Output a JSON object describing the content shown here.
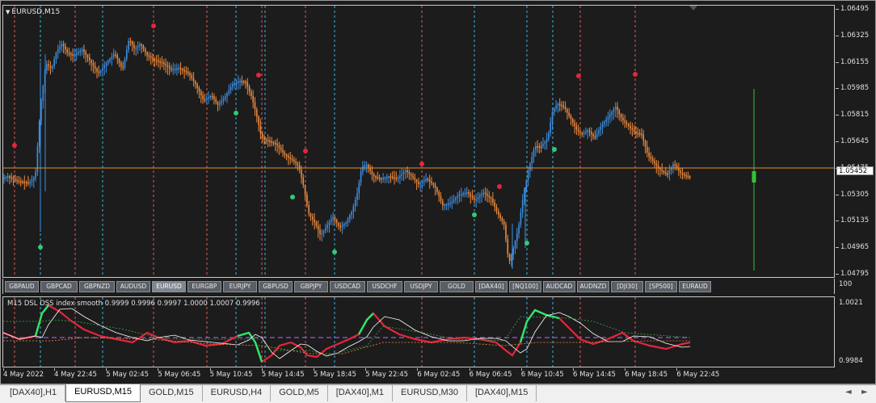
{
  "chart": {
    "symbol_title": "EURUSD,M15",
    "current_price": "1.05452",
    "price_labels": [
      "1.06495",
      "1.06325",
      "1.06155",
      "1.05985",
      "1.05815",
      "1.05645",
      "1.05475",
      "1.05305",
      "1.05135",
      "1.04965",
      "1.04795"
    ],
    "time_labels": [
      "4 May 2022",
      "4 May 22:45",
      "5 May 02:45",
      "5 May 06:45",
      "5 May 10:45",
      "5 May 14:45",
      "5 May 18:45",
      "5 May 22:45",
      "6 May 02:45",
      "6 May 06:45",
      "6 May 10:45",
      "6 May 14:45",
      "6 May 18:45",
      "6 May 22:45"
    ],
    "colors": {
      "bull": "#3d8fe0",
      "bear": "#f08a3c",
      "price_line": "#e8902a",
      "signal_up": "#2ecc71",
      "signal_down": "#e8243c",
      "vline_red": "#e05a5a",
      "vline_blue": "#3ab4e8",
      "level_bar": "#35c235"
    }
  },
  "symbol_buttons": [
    "GBPAUD",
    "GBPCAD",
    "GBPNZD",
    "AUDUSD",
    "EURUSD",
    "EURGBP",
    "EURJPY",
    "GBPUSD",
    "GBPJPY",
    "USDCAD",
    "USDCHF",
    "USDJPY",
    "GOLD",
    "[DAX40]",
    "[NQ100]",
    "AUDCAD",
    "AUDNZD",
    "[DJI30]",
    "[SP500]",
    "EURAUD"
  ],
  "active_symbol": "EURUSD",
  "indicator": {
    "title": "M15 DSL DSS index smooth 0.9999 0.9996 0.9997 1.0000 1.0007 0.9996",
    "axis_labels": [
      "100",
      "1.0021",
      "0.9984"
    ],
    "axis_top": "100"
  },
  "tabs": [
    "[DAX40],H1",
    "EURUSD,M15",
    "GOLD,M15",
    "EURUSD,H4",
    "GOLD,M5",
    "[DAX40],M1",
    "EURUSD,M30",
    "[DAX40],M15"
  ],
  "active_tab": "EURUSD,M15",
  "nav": {
    "left": "◄",
    "right": "►"
  }
}
